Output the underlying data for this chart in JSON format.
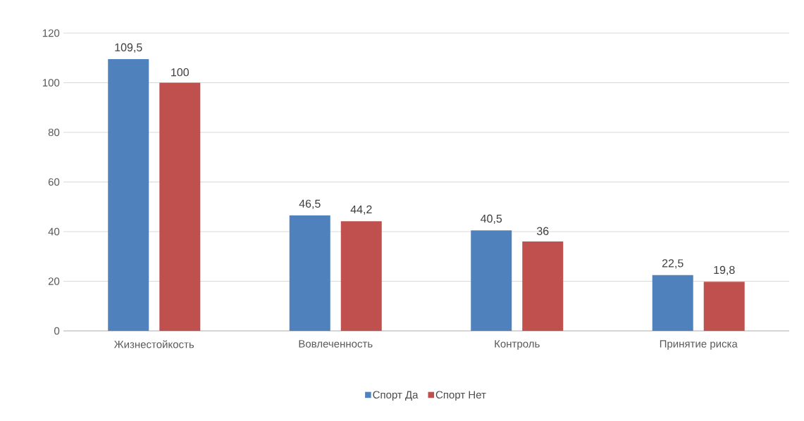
{
  "chart_data": {
    "type": "bar",
    "categories": [
      "Жизнестойкость",
      "Вовлеченность",
      "Контроль",
      "Принятие риска"
    ],
    "series": [
      {
        "name": "Спорт Да",
        "color": "#4f81bd",
        "values": [
          109.5,
          46.5,
          40.5,
          22.5
        ],
        "value_labels": [
          "109,5",
          "46,5",
          "40,5",
          "22,5"
        ]
      },
      {
        "name": "Спорт Нет",
        "color": "#c0504d",
        "values": [
          100,
          44.2,
          36,
          19.8
        ],
        "value_labels": [
          "100",
          "44,2",
          "36",
          "19,8"
        ]
      }
    ],
    "ylim": [
      0,
      120
    ],
    "yticks": [
      0,
      20,
      40,
      60,
      80,
      100,
      120
    ],
    "grid": "y",
    "legend": "bottom"
  }
}
